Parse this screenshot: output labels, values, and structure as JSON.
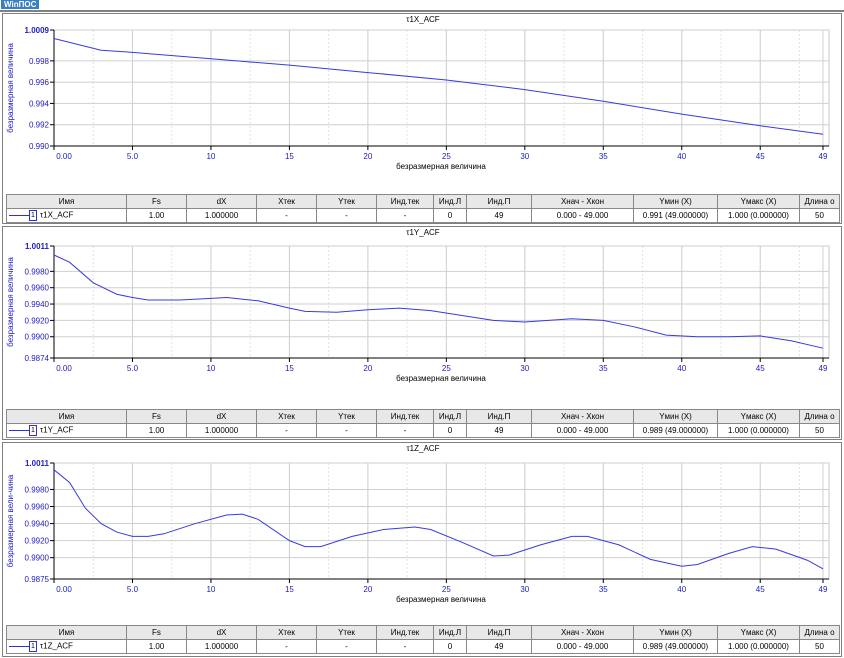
{
  "app": {
    "logo": "WinПОС"
  },
  "colors": {
    "line": "#3a3ae0",
    "axis_text": "#2020c0",
    "grid": "#cfcfcf"
  },
  "table_headers": [
    "Имя",
    "Fs",
    "dX",
    "Xтек",
    "Yтек",
    "Инд.тек",
    "Инд.Л",
    "Инд.П",
    "Хнач - Хкон",
    "Yмин (X)",
    "Yмакс (X)",
    "Длина о"
  ],
  "panels": [
    {
      "title": "τ1X_ACF",
      "xlabel": "безразмерная величина",
      "ylabel": "безразмерная величина",
      "row": [
        "τ1X_ACF",
        "1.00",
        "1.000000",
        "-",
        "-",
        "-",
        "0",
        "49",
        "0.000 - 49.000",
        "0.991 (49.000000)",
        "1.000 (0.000000)",
        "50"
      ],
      "row_index": "1"
    },
    {
      "title": "τ1Y_ACF",
      "xlabel": "безразмерная величина",
      "ylabel": "безразмерная величина",
      "row": [
        "τ1Y_ACF",
        "1.00",
        "1.000000",
        "-",
        "-",
        "-",
        "0",
        "49",
        "0.000 - 49.000",
        "0.989 (49.000000)",
        "1.000 (0.000000)",
        "50"
      ],
      "row_index": "1"
    },
    {
      "title": "τ1Z_ACF",
      "xlabel": "безразмерная величина",
      "ylabel": "безразмерная вели-чина",
      "row": [
        "τ1Z_ACF",
        "1.00",
        "1.000000",
        "-",
        "-",
        "-",
        "0",
        "49",
        "0.000 - 49.000",
        "0.989 (49.000000)",
        "1.000 (0.000000)",
        "50"
      ],
      "row_index": "1"
    }
  ],
  "chart_data": [
    {
      "type": "line",
      "title": "τ1X_ACF",
      "xlabel": "безразмерная величина",
      "ylabel": "безразмерная величина",
      "xlim": [
        0,
        49
      ],
      "ylim": [
        0.99,
        1.0009
      ],
      "grid": true,
      "xticks": [
        "0.00",
        "5.0",
        "10",
        "15",
        "20",
        "25",
        "30",
        "35",
        "40",
        "45",
        "49"
      ],
      "yticks": [
        {
          "v": 0.99,
          "l": "0.990"
        },
        {
          "v": 0.992,
          "l": "0.992"
        },
        {
          "v": 0.994,
          "l": "0.994"
        },
        {
          "v": 0.996,
          "l": "0.996"
        },
        {
          "v": 0.998,
          "l": "0.998"
        },
        {
          "v": 1.0009,
          "l": "1.0009"
        }
      ],
      "x": [
        0,
        3,
        5,
        10,
        15,
        20,
        25,
        30,
        35,
        40,
        45,
        49
      ],
      "y": [
        1.0001,
        0.999,
        0.9988,
        0.9982,
        0.9976,
        0.9969,
        0.9962,
        0.9953,
        0.9942,
        0.993,
        0.9919,
        0.9911
      ]
    },
    {
      "type": "line",
      "title": "τ1Y_ACF",
      "xlabel": "безразмерная величина",
      "ylabel": "безразмерная величина",
      "xlim": [
        0,
        49
      ],
      "ylim": [
        0.9874,
        1.0011
      ],
      "grid": true,
      "xticks": [
        "0.00",
        "5.0",
        "10",
        "15",
        "20",
        "25",
        "30",
        "35",
        "40",
        "45",
        "49"
      ],
      "yticks": [
        {
          "v": 0.9874,
          "l": "0.9874"
        },
        {
          "v": 0.99,
          "l": "0.9900"
        },
        {
          "v": 0.992,
          "l": "0.9920"
        },
        {
          "v": 0.994,
          "l": "0.9940"
        },
        {
          "v": 0.996,
          "l": "0.9960"
        },
        {
          "v": 0.998,
          "l": "0.9980"
        },
        {
          "v": 1.0011,
          "l": "1.0011"
        }
      ],
      "x": [
        0,
        1,
        2.5,
        4,
        5,
        6,
        8,
        10,
        11,
        13,
        15,
        16,
        18,
        20,
        22,
        24,
        26,
        28,
        30,
        33,
        35,
        37,
        39,
        41,
        43,
        45,
        47,
        49
      ],
      "y": [
        1.0,
        0.9991,
        0.9966,
        0.9952,
        0.9948,
        0.9945,
        0.9945,
        0.9947,
        0.9948,
        0.9944,
        0.9935,
        0.9931,
        0.993,
        0.9933,
        0.9935,
        0.9932,
        0.9926,
        0.992,
        0.9918,
        0.9922,
        0.992,
        0.9912,
        0.9902,
        0.99,
        0.99,
        0.9901,
        0.9895,
        0.9886
      ]
    },
    {
      "type": "line",
      "title": "τ1Z_ACF",
      "xlabel": "безразмерная величина",
      "ylabel": "безразмерная вели-чина",
      "xlim": [
        0,
        49
      ],
      "ylim": [
        0.9875,
        1.0011
      ],
      "grid": true,
      "xticks": [
        "0.00",
        "5.0",
        "10",
        "15",
        "20",
        "25",
        "30",
        "35",
        "40",
        "45",
        "49"
      ],
      "yticks": [
        {
          "v": 0.9875,
          "l": "0.9875"
        },
        {
          "v": 0.99,
          "l": "0.9900"
        },
        {
          "v": 0.992,
          "l": "0.9920"
        },
        {
          "v": 0.994,
          "l": "0.9940"
        },
        {
          "v": 0.996,
          "l": "0.9960"
        },
        {
          "v": 0.998,
          "l": "0.9980"
        },
        {
          "v": 1.0011,
          "l": "1.0011"
        }
      ],
      "x": [
        0,
        1,
        2,
        3,
        4,
        5,
        6,
        7,
        9,
        11,
        12,
        13,
        15,
        16,
        17,
        19,
        21,
        23,
        24,
        26,
        28,
        29,
        31,
        33,
        34,
        36,
        38,
        40,
        41,
        43,
        44.5,
        46,
        48,
        49
      ],
      "y": [
        1.0003,
        0.9988,
        0.9958,
        0.994,
        0.993,
        0.9925,
        0.9925,
        0.9928,
        0.994,
        0.995,
        0.9951,
        0.9945,
        0.992,
        0.9913,
        0.9913,
        0.9925,
        0.9933,
        0.9936,
        0.9933,
        0.9918,
        0.9902,
        0.9903,
        0.9915,
        0.9925,
        0.9925,
        0.9915,
        0.9898,
        0.989,
        0.9892,
        0.9905,
        0.9913,
        0.991,
        0.9897,
        0.9887
      ]
    }
  ]
}
